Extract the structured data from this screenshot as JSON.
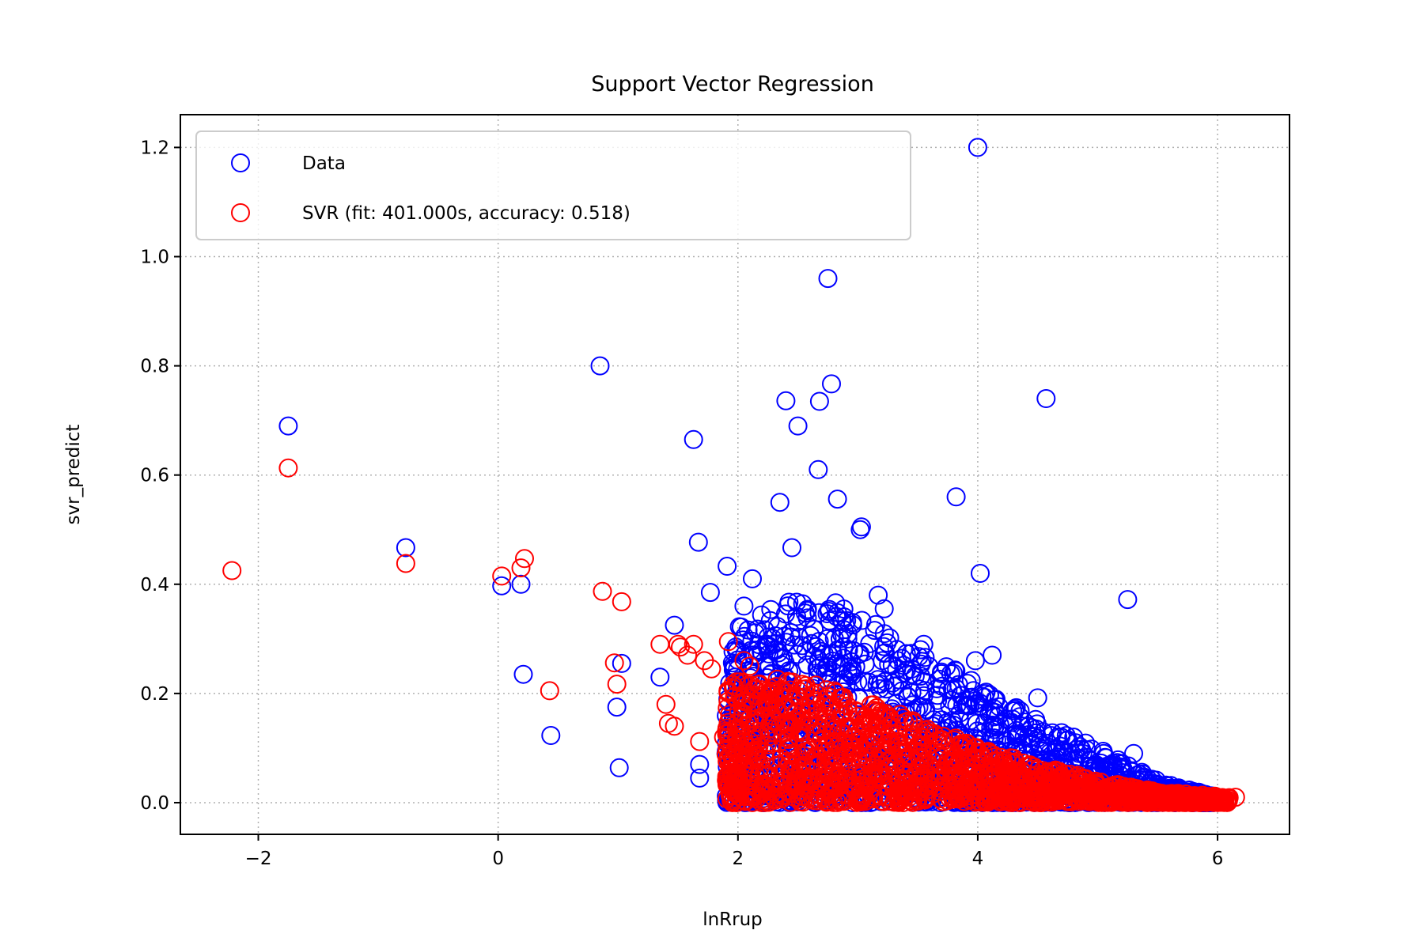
{
  "chart_data": {
    "type": "scatter",
    "title": "Support Vector Regression",
    "xlabel": "lnRrup",
    "ylabel": "svr_predict",
    "xlim": [
      -2.65,
      6.6
    ],
    "ylim": [
      -0.058,
      1.26
    ],
    "xticks": [
      -2,
      0,
      2,
      4,
      6
    ],
    "xtick_labels": [
      "−2",
      "0",
      "2",
      "4",
      "6"
    ],
    "yticks": [
      0.0,
      0.2,
      0.4,
      0.6,
      0.8,
      1.0,
      1.2
    ],
    "ytick_labels": [
      "0.0",
      "0.2",
      "0.4",
      "0.6",
      "0.8",
      "1.0",
      "1.2"
    ],
    "grid": true,
    "legend_position": "upper-left",
    "series": [
      {
        "name": "Data",
        "color": "#0000ff",
        "marker": "open-circle",
        "points": [
          [
            -1.75,
            0.69
          ],
          [
            -0.77,
            0.467
          ],
          [
            0.03,
            0.397
          ],
          [
            0.19,
            0.4
          ],
          [
            0.21,
            0.235
          ],
          [
            0.44,
            0.123
          ],
          [
            0.85,
            0.8
          ],
          [
            0.99,
            0.175
          ],
          [
            1.01,
            0.064
          ],
          [
            1.03,
            0.255
          ],
          [
            1.35,
            0.23
          ],
          [
            1.47,
            0.325
          ],
          [
            1.63,
            0.665
          ],
          [
            1.67,
            0.477
          ],
          [
            1.68,
            0.045
          ],
          [
            1.68,
            0.07
          ],
          [
            1.77,
            0.385
          ],
          [
            1.91,
            0.433
          ],
          [
            2.05,
            0.36
          ],
          [
            2.12,
            0.41
          ],
          [
            2.35,
            0.55
          ],
          [
            2.4,
            0.736
          ],
          [
            2.45,
            0.467
          ],
          [
            2.5,
            0.69
          ],
          [
            2.67,
            0.61
          ],
          [
            2.68,
            0.735
          ],
          [
            2.75,
            0.96
          ],
          [
            2.78,
            0.767
          ],
          [
            2.83,
            0.556
          ],
          [
            3.02,
            0.5
          ],
          [
            3.03,
            0.505
          ],
          [
            3.17,
            0.38
          ],
          [
            3.22,
            0.355
          ],
          [
            3.55,
            0.29
          ],
          [
            3.82,
            0.56
          ],
          [
            3.98,
            0.26
          ],
          [
            4.0,
            1.2
          ],
          [
            4.02,
            0.42
          ],
          [
            4.12,
            0.27
          ],
          [
            4.5,
            0.192
          ],
          [
            4.57,
            0.74
          ],
          [
            4.8,
            0.12
          ],
          [
            5.05,
            0.09
          ],
          [
            5.25,
            0.372
          ],
          [
            5.3,
            0.09
          ],
          [
            5.7,
            0.02
          ],
          [
            5.9,
            0.015
          ]
        ],
        "cloud": {
          "description": "dense band of points",
          "x_range": [
            1.9,
            6.0
          ],
          "y_min": 0.0,
          "y_max_at_x": [
            [
              1.9,
              0.31
            ],
            [
              2.3,
              0.37
            ],
            [
              2.8,
              0.37
            ],
            [
              3.2,
              0.33
            ],
            [
              3.6,
              0.27
            ],
            [
              4.0,
              0.22
            ],
            [
              4.5,
              0.15
            ],
            [
              5.0,
              0.1
            ],
            [
              5.5,
              0.04
            ],
            [
              6.0,
              0.01
            ]
          ]
        }
      },
      {
        "name": "SVR (fit: 401.000s, accuracy: 0.518)",
        "color": "#ff0000",
        "marker": "open-circle",
        "points": [
          [
            -2.22,
            0.425
          ],
          [
            -1.75,
            0.613
          ],
          [
            -0.77,
            0.438
          ],
          [
            0.03,
            0.415
          ],
          [
            0.19,
            0.43
          ],
          [
            0.22,
            0.447
          ],
          [
            0.43,
            0.205
          ],
          [
            0.87,
            0.387
          ],
          [
            0.97,
            0.256
          ],
          [
            0.99,
            0.217
          ],
          [
            1.03,
            0.368
          ],
          [
            1.35,
            0.29
          ],
          [
            1.4,
            0.18
          ],
          [
            1.42,
            0.145
          ],
          [
            1.47,
            0.14
          ],
          [
            1.5,
            0.29
          ],
          [
            1.52,
            0.285
          ],
          [
            1.58,
            0.27
          ],
          [
            1.63,
            0.29
          ],
          [
            1.68,
            0.112
          ],
          [
            1.72,
            0.26
          ],
          [
            1.78,
            0.245
          ],
          [
            1.88,
            0.12
          ],
          [
            1.92,
            0.295
          ],
          [
            2.05,
            0.26
          ],
          [
            2.1,
            0.25
          ],
          [
            6.15,
            0.01
          ],
          [
            5.95,
            0.008
          ],
          [
            5.8,
            0.01
          ]
        ],
        "cloud": {
          "description": "dense band of predictions",
          "x_range": [
            1.9,
            6.1
          ],
          "y_min": 0.0,
          "y_max_at_x": [
            [
              1.9,
              0.22
            ],
            [
              2.5,
              0.23
            ],
            [
              3.0,
              0.19
            ],
            [
              3.5,
              0.15
            ],
            [
              4.0,
              0.1
            ],
            [
              4.5,
              0.07
            ],
            [
              5.0,
              0.04
            ],
            [
              5.5,
              0.02
            ],
            [
              6.1,
              0.01
            ]
          ]
        }
      }
    ]
  }
}
